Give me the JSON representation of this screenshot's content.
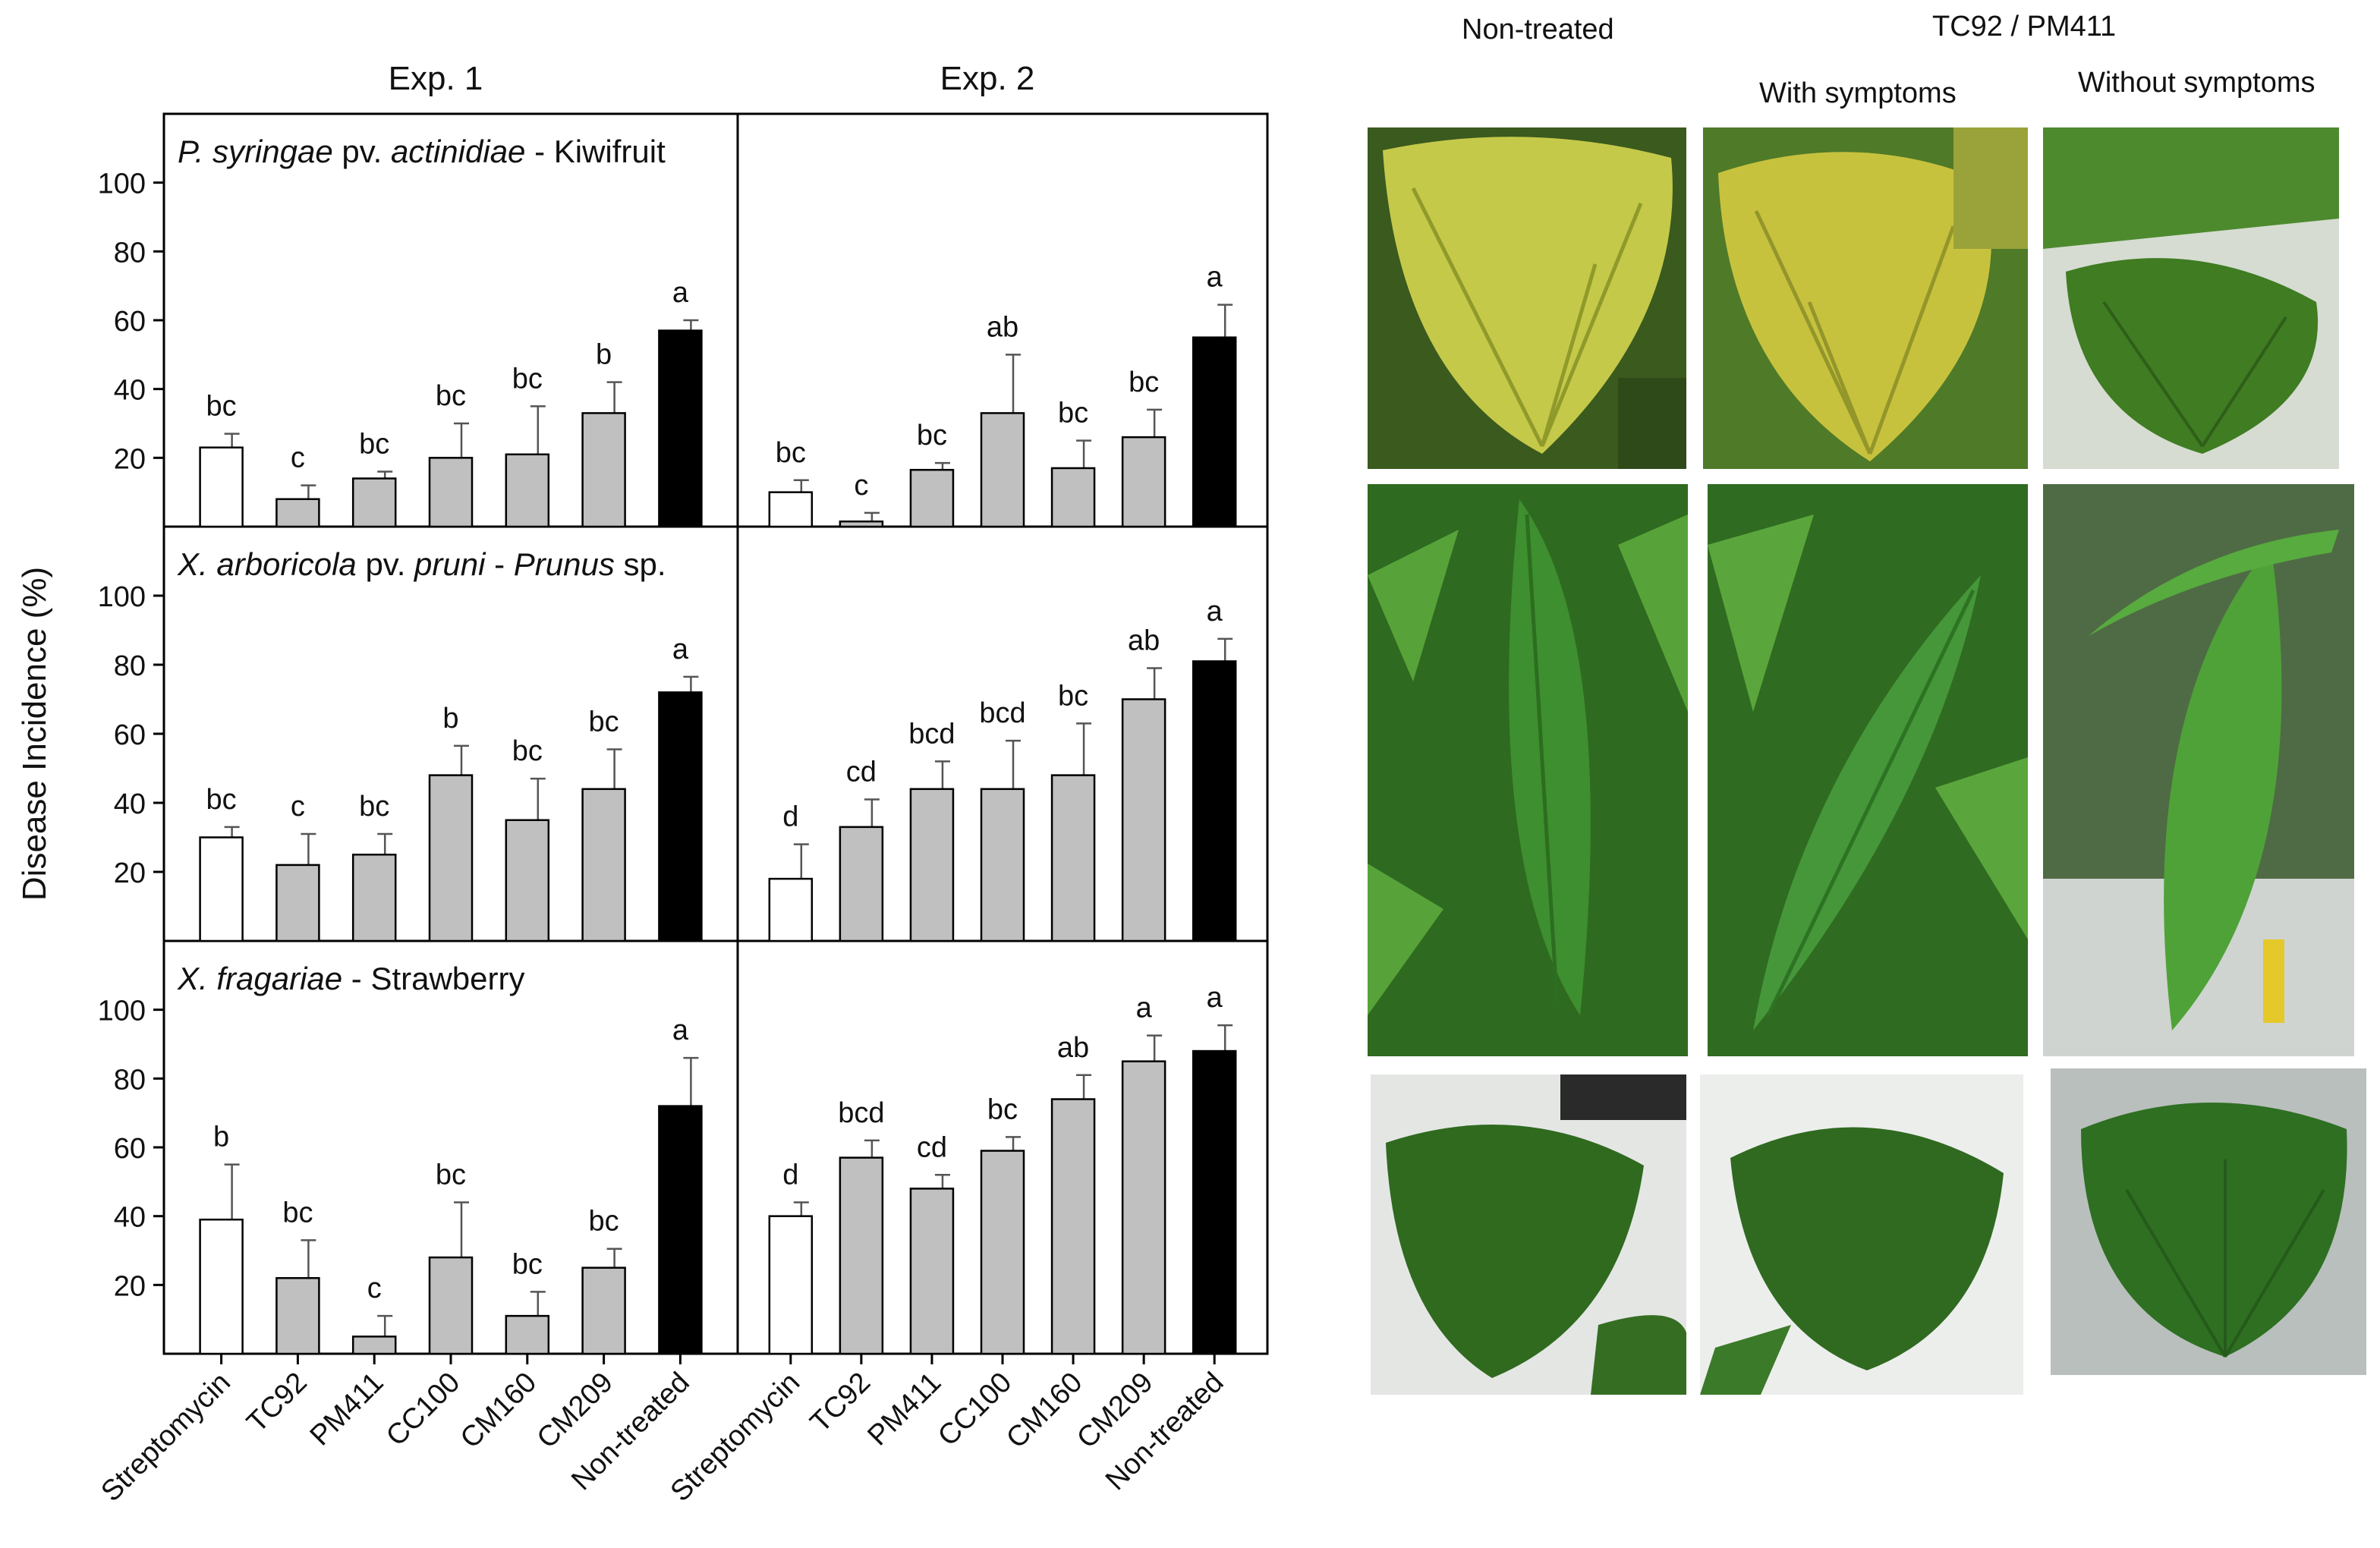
{
  "figure": {
    "ylabel": "Disease Incidence (%)",
    "columns": [
      "Exp. 1",
      "Exp. 2"
    ],
    "panel_titles": [
      {
        "parts": [
          {
            "t": "P. syringae",
            "i": true
          },
          {
            "t": " pv. ",
            "i": false
          },
          {
            "t": "actinidiae",
            "i": true
          },
          {
            "t": " - Kiwifruit",
            "i": false
          }
        ]
      },
      {
        "parts": [
          {
            "t": "X. arboricola",
            "i": true
          },
          {
            "t": " pv. ",
            "i": false
          },
          {
            "t": "pruni",
            "i": true
          },
          {
            "t": " - ",
            "i": false
          },
          {
            "t": "Prunus",
            "i": true
          },
          {
            "t": " sp.",
            "i": false
          }
        ]
      },
      {
        "parts": [
          {
            "t": "X. fragariae",
            "i": true
          },
          {
            "t": " - Strawberry",
            "i": false
          }
        ]
      }
    ]
  },
  "chart_data": {
    "type": "bar",
    "categories": [
      "Streptomycin",
      "TC92",
      "PM411",
      "CC100",
      "CM160",
      "CM209",
      "Non-treated"
    ],
    "bar_colors": [
      "#ffffff",
      "#c0c0c0",
      "#c0c0c0",
      "#c0c0c0",
      "#c0c0c0",
      "#c0c0c0",
      "#000000"
    ],
    "ylim": [
      0,
      120
    ],
    "yticks": [
      20,
      40,
      60,
      80,
      100
    ],
    "panels": [
      {
        "row": 0,
        "col": 0,
        "values": [
          23,
          8,
          14,
          20,
          21,
          33,
          57
        ],
        "errors": [
          4,
          4,
          2,
          10,
          14,
          9,
          3
        ],
        "labels": [
          "bc",
          "c",
          "bc",
          "bc",
          "bc",
          "b",
          "a"
        ]
      },
      {
        "row": 0,
        "col": 1,
        "values": [
          10,
          1.5,
          16.5,
          33,
          17,
          26,
          55
        ],
        "errors": [
          3.5,
          2.5,
          2,
          17,
          8,
          8,
          9.5
        ],
        "labels": [
          "bc",
          "c",
          "bc",
          "ab",
          "bc",
          "bc",
          "a"
        ]
      },
      {
        "row": 1,
        "col": 0,
        "values": [
          30,
          22,
          25,
          48,
          35,
          44,
          72
        ],
        "errors": [
          3,
          9,
          6,
          8.5,
          12,
          11.5,
          4.5
        ],
        "labels": [
          "bc",
          "c",
          "bc",
          "b",
          "bc",
          "bc",
          "a"
        ]
      },
      {
        "row": 1,
        "col": 1,
        "values": [
          18,
          33,
          44,
          44,
          48,
          70,
          81
        ],
        "errors": [
          10,
          8,
          8,
          14,
          15,
          9,
          6.5
        ],
        "labels": [
          "d",
          "cd",
          "bcd",
          "bcd",
          "bc",
          "ab",
          "a"
        ]
      },
      {
        "row": 2,
        "col": 0,
        "values": [
          39,
          22,
          5,
          28,
          11,
          25,
          72
        ],
        "errors": [
          16,
          11,
          6,
          16,
          7,
          5.5,
          14
        ],
        "labels": [
          "b",
          "bc",
          "c",
          "bc",
          "bc",
          "bc",
          "a"
        ]
      },
      {
        "row": 2,
        "col": 1,
        "values": [
          40,
          57,
          48,
          59,
          74,
          85,
          88
        ],
        "errors": [
          4,
          5,
          4,
          4,
          7,
          7.5,
          7.5
        ],
        "labels": [
          "d",
          "bcd",
          "cd",
          "bc",
          "ab",
          "a",
          "a"
        ]
      }
    ]
  },
  "photos": {
    "headers": {
      "non_treated": "Non-treated",
      "group": "TC92 / PM411",
      "with": "With symptoms",
      "without": "Without symptoms"
    },
    "colors": {
      "kiwi_yellow": "#c2c23a",
      "kiwi_green": "#3f7a24",
      "prunus": "#3f8f2e",
      "strawberry": "#2f6a22",
      "background_dark": "#1f3a18",
      "background_light": "#e8ecec"
    }
  }
}
